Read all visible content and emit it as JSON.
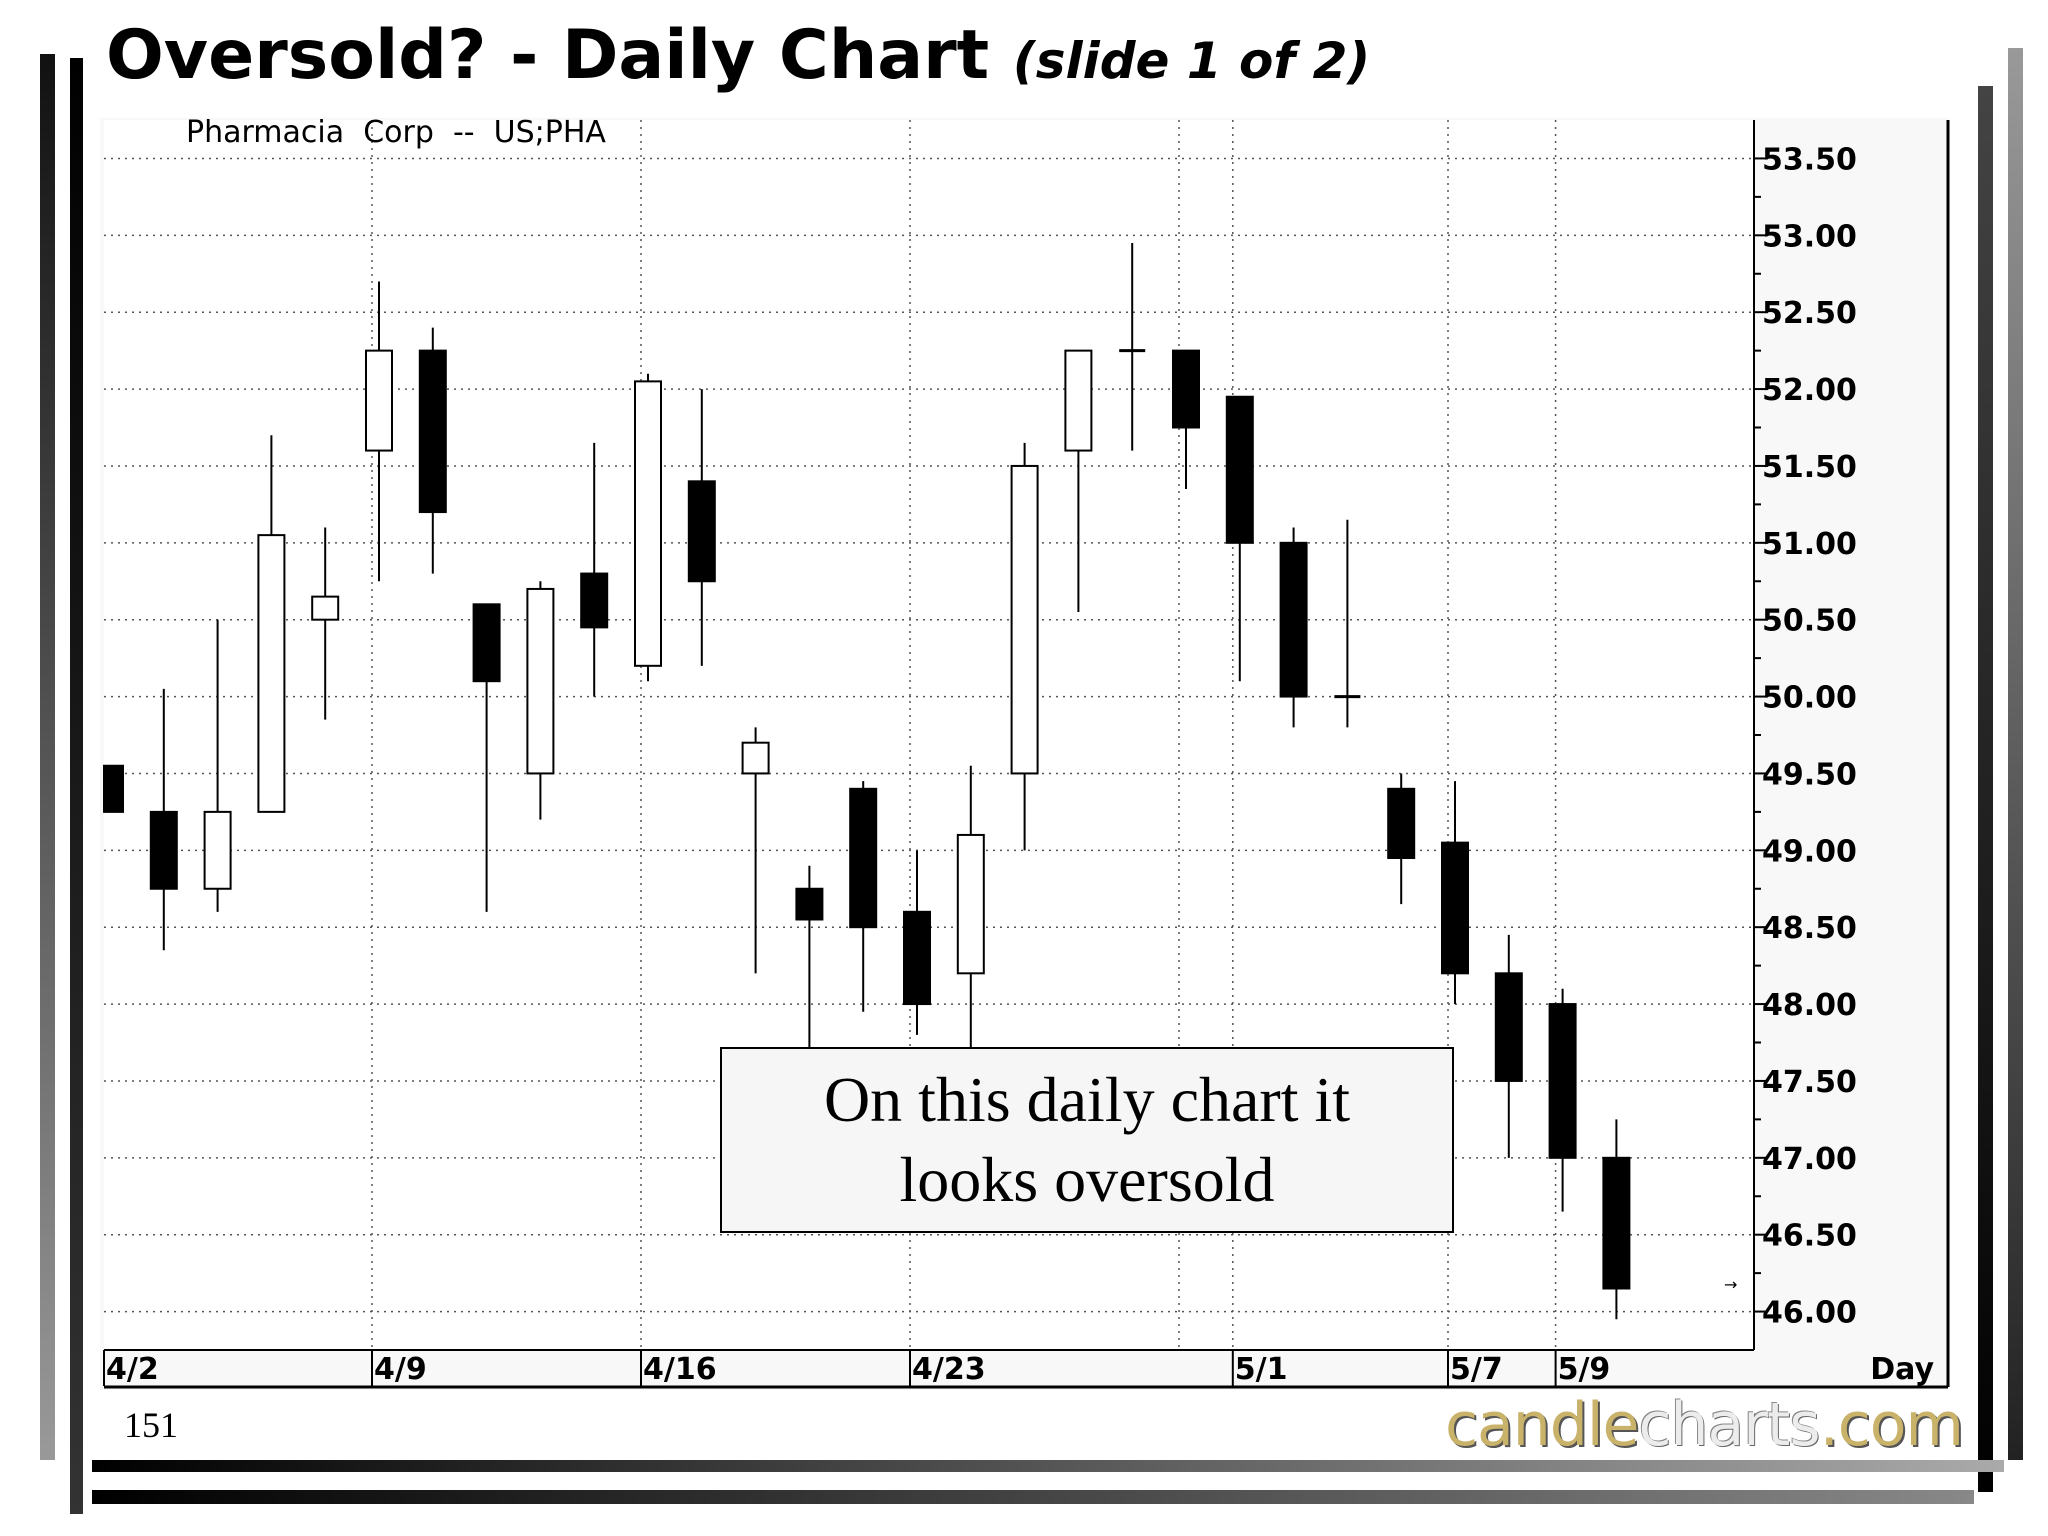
{
  "slide": {
    "title_main": "Oversold?  - Daily Chart",
    "title_sub": "(slide 1 of 2)",
    "slide_number": "151",
    "annotation_line1": "On this daily chart it",
    "annotation_line2": "looks oversold",
    "brand_part1": "candle",
    "brand_part2": "charts",
    "brand_part3": ".com"
  },
  "chart_data": {
    "type": "candlestick",
    "title": "Pharmacia  Corp  --  US;PHA",
    "xlabel": "Day",
    "ylim": [
      45.75,
      53.75
    ],
    "y_ticks": [
      "53.50",
      "53.00",
      "52.50",
      "52.00",
      "51.50",
      "51.00",
      "50.50",
      "50.00",
      "49.50",
      "49.00",
      "48.50",
      "48.00",
      "47.50",
      "47.00",
      "46.50",
      "46.00"
    ],
    "x_tick_labels": [
      {
        "label": "4/2",
        "index": 0
      },
      {
        "label": "4/9",
        "index": 5
      },
      {
        "label": "4/16",
        "index": 10
      },
      {
        "label": "4/23",
        "index": 15
      },
      {
        "label": "5/1",
        "index": 21
      },
      {
        "label": "5/7",
        "index": 25
      },
      {
        "label": "5/9",
        "index": 27
      }
    ],
    "candles": [
      {
        "open": 49.55,
        "high": 49.55,
        "low": 49.25,
        "close": 49.25
      },
      {
        "open": 49.25,
        "high": 50.05,
        "low": 48.35,
        "close": 48.75
      },
      {
        "open": 48.75,
        "high": 50.5,
        "low": 48.6,
        "close": 49.25
      },
      {
        "open": 49.25,
        "high": 51.7,
        "low": 49.25,
        "close": 51.05
      },
      {
        "open": 50.5,
        "high": 51.1,
        "low": 49.85,
        "close": 50.65
      },
      {
        "open": 51.6,
        "high": 52.7,
        "low": 50.75,
        "close": 52.25
      },
      {
        "open": 52.25,
        "high": 52.4,
        "low": 50.8,
        "close": 51.2
      },
      {
        "open": 50.6,
        "high": 50.6,
        "low": 48.6,
        "close": 50.1
      },
      {
        "open": 49.5,
        "high": 50.75,
        "low": 49.2,
        "close": 50.7
      },
      {
        "open": 50.8,
        "high": 51.65,
        "low": 50.0,
        "close": 50.45
      },
      {
        "open": 50.2,
        "high": 52.1,
        "low": 50.1,
        "close": 52.05
      },
      {
        "open": 51.4,
        "high": 52.0,
        "low": 50.2,
        "close": 50.75
      },
      {
        "open": 49.5,
        "high": 49.8,
        "low": 48.2,
        "close": 49.7
      },
      {
        "open": 48.75,
        "high": 48.9,
        "low": 47.55,
        "close": 48.55
      },
      {
        "open": 49.4,
        "high": 49.45,
        "low": 47.95,
        "close": 48.5
      },
      {
        "open": 48.6,
        "high": 49.0,
        "low": 47.8,
        "close": 48.0
      },
      {
        "open": 48.2,
        "high": 49.55,
        "low": 47.55,
        "close": 49.1
      },
      {
        "open": 49.5,
        "high": 51.65,
        "low": 49.0,
        "close": 51.5
      },
      {
        "open": 51.6,
        "high": 52.25,
        "low": 50.55,
        "close": 52.25
      },
      {
        "open": 52.25,
        "high": 52.95,
        "low": 51.6,
        "close": 52.25
      },
      {
        "open": 52.25,
        "high": 52.25,
        "low": 51.35,
        "close": 51.75
      },
      {
        "open": 51.95,
        "high": 51.95,
        "low": 50.1,
        "close": 51.0
      },
      {
        "open": 51.0,
        "high": 51.1,
        "low": 49.8,
        "close": 50.0
      },
      {
        "open": 50.0,
        "high": 51.15,
        "low": 49.8,
        "close": 50.0
      },
      {
        "open": 49.4,
        "high": 49.5,
        "low": 48.65,
        "close": 48.95
      },
      {
        "open": 49.05,
        "high": 49.45,
        "low": 48.0,
        "close": 48.2
      },
      {
        "open": 48.2,
        "high": 48.45,
        "low": 47.0,
        "close": 47.5
      },
      {
        "open": 48.0,
        "high": 48.1,
        "low": 46.65,
        "close": 47.0
      },
      {
        "open": 47.0,
        "high": 47.25,
        "low": 45.95,
        "close": 46.15
      }
    ]
  }
}
